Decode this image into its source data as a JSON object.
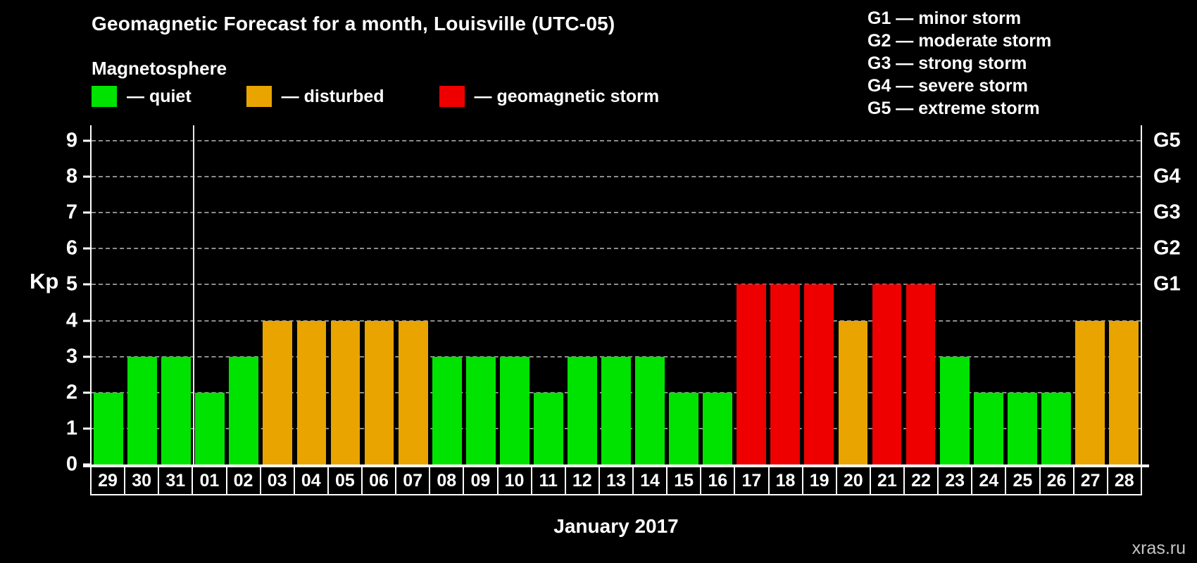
{
  "header": {
    "title": "Geomagnetic Forecast for a month, Louisville (UTC-05)",
    "subtitle": "Magnetosphere"
  },
  "legend": [
    {
      "label": "— quiet",
      "state": "quiet"
    },
    {
      "label": "— disturbed",
      "state": "disturbed"
    },
    {
      "label": "— geomagnetic storm",
      "state": "storm"
    }
  ],
  "g_scale_legend": [
    "G1 — minor storm",
    "G2 — moderate storm",
    "G3 — strong storm",
    "G4 — severe storm",
    "G5 — extreme storm"
  ],
  "axis": {
    "kp_label": "Kp"
  },
  "footer": {
    "month_label": "January 2017",
    "watermark": "xras.ru"
  },
  "colors": {
    "quiet": "#00e300",
    "disturbed": "#e9a400",
    "storm": "#ee0000",
    "background": "#000000",
    "text": "#ffffff",
    "grid": "#8d8d8d"
  },
  "chart_data": {
    "type": "bar",
    "title": "Geomagnetic Forecast for a month, Louisville (UTC-05)",
    "xlabel": "January 2017",
    "ylabel": "Kp",
    "ylim": [
      0,
      9
    ],
    "y_ticks": [
      0,
      1,
      2,
      3,
      4,
      5,
      6,
      7,
      8,
      9
    ],
    "grid": true,
    "right_axis_labels": [
      {
        "label": "G1",
        "value": 5
      },
      {
        "label": "G2",
        "value": 6
      },
      {
        "label": "G3",
        "value": 7
      },
      {
        "label": "G4",
        "value": 8
      },
      {
        "label": "G5",
        "value": 9
      }
    ],
    "separator_before_index": 3,
    "categories": [
      "29",
      "30",
      "31",
      "01",
      "02",
      "03",
      "04",
      "05",
      "06",
      "07",
      "08",
      "09",
      "10",
      "11",
      "12",
      "13",
      "14",
      "15",
      "16",
      "17",
      "18",
      "19",
      "20",
      "21",
      "22",
      "23",
      "24",
      "25",
      "26",
      "27",
      "28"
    ],
    "values": [
      2,
      3,
      3,
      2,
      3,
      4,
      4,
      4,
      4,
      4,
      3,
      3,
      3,
      2,
      3,
      3,
      3,
      2,
      2,
      5,
      5,
      5,
      4,
      5,
      5,
      3,
      2,
      2,
      2,
      4,
      4
    ],
    "states": [
      "quiet",
      "quiet",
      "quiet",
      "quiet",
      "quiet",
      "disturbed",
      "disturbed",
      "disturbed",
      "disturbed",
      "disturbed",
      "quiet",
      "quiet",
      "quiet",
      "quiet",
      "quiet",
      "quiet",
      "quiet",
      "quiet",
      "quiet",
      "storm",
      "storm",
      "storm",
      "disturbed",
      "storm",
      "storm",
      "quiet",
      "quiet",
      "quiet",
      "quiet",
      "disturbed",
      "disturbed"
    ]
  }
}
